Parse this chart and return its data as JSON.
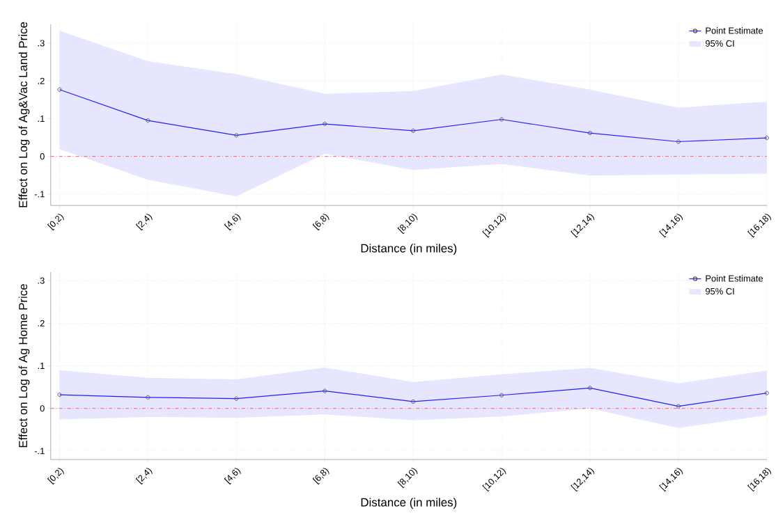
{
  "chart_data": [
    {
      "type": "line",
      "xlabel": "Distance (in miles)",
      "ylabel": "Effect on Log of Ag&Vac Land Price",
      "categories": [
        "[0,2)",
        "[2,4)",
        "[4,6)",
        "[6,8)",
        "[8,10)",
        "[10,12)",
        "[12,14)",
        "[14,16)",
        "[16,18)"
      ],
      "series": [
        {
          "name": "Point Estimate",
          "color": "#1f1fff",
          "values": [
            0.177,
            0.095,
            0.056,
            0.086,
            0.068,
            0.098,
            0.062,
            0.039,
            0.049
          ],
          "lower": [
            0.019,
            -0.062,
            -0.106,
            0.007,
            -0.036,
            -0.02,
            -0.051,
            -0.048,
            -0.046
          ],
          "upper": [
            0.333,
            0.252,
            0.218,
            0.166,
            0.173,
            0.217,
            0.177,
            0.129,
            0.145
          ]
        }
      ],
      "annotations": [
        "95% CI"
      ],
      "ylim": [
        -0.13,
        0.35
      ],
      "yticks": [
        {
          "value": -0.1,
          "label": "-.1"
        },
        0,
        {
          "value": 0.1,
          "label": ".1"
        },
        {
          "value": 0.2,
          "label": ".2"
        },
        {
          "value": 0.3,
          "label": ".3"
        }
      ],
      "ref_lines": [
        {
          "axis": "y",
          "value": 0,
          "color": "#ff5050",
          "line_style": "dashed"
        }
      ],
      "grid": true,
      "legend": "top right",
      "marker": "circle",
      "line_style": "solid"
    },
    {
      "type": "line",
      "xlabel": "Distance (in miles)",
      "ylabel": "Effect on Log of Ag Home Price",
      "categories": [
        "[0,2)",
        "[2,4)",
        "[4,6)",
        "[6,8)",
        "[8,10)",
        "[10,12)",
        "[12,14)",
        "[14,16)",
        "[16,18)"
      ],
      "series": [
        {
          "name": "Point Estimate",
          "color": "#1f1fff",
          "values": [
            0.032,
            0.026,
            0.023,
            0.041,
            0.016,
            0.031,
            0.048,
            0.005,
            0.036
          ],
          "lower": [
            -0.026,
            -0.02,
            -0.022,
            -0.014,
            -0.028,
            -0.019,
            0.0,
            -0.046,
            -0.016
          ],
          "upper": [
            0.09,
            0.072,
            0.068,
            0.096,
            0.062,
            0.08,
            0.095,
            0.059,
            0.089
          ]
        }
      ],
      "annotations": [
        "95% CI"
      ],
      "ylim": [
        -0.12,
        0.32
      ],
      "yticks": [
        {
          "value": -0.1,
          "label": "-.1"
        },
        0,
        {
          "value": 0.1,
          "label": ".1"
        },
        {
          "value": 0.2,
          "label": ".2"
        },
        {
          "value": 0.3,
          "label": ".3"
        }
      ],
      "ref_lines": [
        {
          "axis": "y",
          "value": 0,
          "color": "#ff5050",
          "line_style": "dashed"
        }
      ],
      "grid": true,
      "legend": "top right",
      "marker": "circle",
      "line_style": "solid"
    }
  ]
}
